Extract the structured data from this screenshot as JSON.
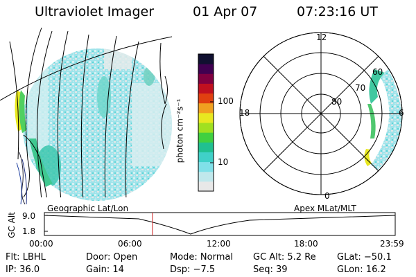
{
  "header": {
    "instrument": "Ultraviolet Imager",
    "date": "01 Apr 07",
    "time": "07:23:16 UT"
  },
  "colorbar": {
    "unit_label": "photon cm⁻²s⁻¹",
    "ticks": [
      "100",
      "10"
    ],
    "scale": "log",
    "colors": [
      "#e8e8e8",
      "#c0e8ec",
      "#80e0e8",
      "#40d0c8",
      "#20c090",
      "#40d040",
      "#a0e020",
      "#e8e820",
      "#f0a020",
      "#e04010",
      "#c01020",
      "#800040",
      "#400050",
      "#101030"
    ]
  },
  "polar_plot": {
    "mlt_labels": [
      "12",
      "18",
      "6",
      "0"
    ],
    "lat_labels": [
      "80",
      "70",
      "60"
    ]
  },
  "timeline": {
    "y_label": "GC Alt",
    "y_ticks": [
      "9.0",
      "1.8"
    ],
    "left_caption": "Geographic Lat/Lon",
    "right_caption": "Apex MLat/MLT",
    "x_ticks": [
      "00:00",
      "06:00",
      "12:00",
      "18:00",
      "23:59"
    ],
    "marker_time_hours": 7.39,
    "marker_color": "#cc2222"
  },
  "info": {
    "flt": "Flt: LBHL",
    "door": "Door: Open",
    "mode": "Mode: Normal",
    "gc_alt": "GC Alt: 5.2 Re",
    "glat": "GLat: −50.1",
    "ip": "IP: 36.0",
    "gain": "Gain: 14",
    "dsp": "Dsp:   −7.5",
    "seq": "Seq: 39",
    "glon": "GLon:  16.2"
  }
}
